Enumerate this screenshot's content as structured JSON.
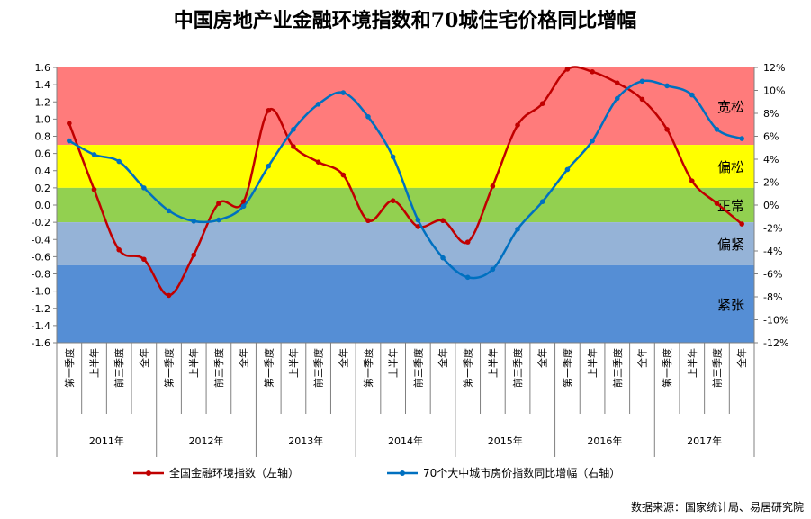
{
  "chart_data": {
    "type": "line",
    "title": "中国房地产业金融环境指数和70城住宅价格同比增幅",
    "source": "数据来源：国家统计局、易居研究院",
    "years": [
      "2011年",
      "2012年",
      "2013年",
      "2014年",
      "2015年",
      "2016年",
      "2017年"
    ],
    "quarters": [
      "第一季度",
      "上半年",
      "前三季度",
      "全年"
    ],
    "left_axis": {
      "min": -1.6,
      "max": 1.6,
      "step": 0.2,
      "ticks": [
        "1.6",
        "1.4",
        "1.2",
        "1.0",
        "0.8",
        "0.6",
        "0.4",
        "0.2",
        "0.0",
        "-0.2",
        "-0.4",
        "-0.6",
        "-0.8",
        "-1.0",
        "-1.2",
        "-1.4",
        "-1.6"
      ]
    },
    "right_axis": {
      "min": -12,
      "max": 12,
      "step": 2,
      "ticks": [
        "12%",
        "10%",
        "8%",
        "6%",
        "4%",
        "2%",
        "0%",
        "-2%",
        "-4%",
        "-6%",
        "-8%",
        "-10%",
        "-12%"
      ]
    },
    "zones": [
      {
        "label": "宽松",
        "from": 0.7,
        "to": 1.6,
        "color": "#ff7b7b"
      },
      {
        "label": "偏松",
        "from": 0.2,
        "to": 0.7,
        "color": "#ffff00"
      },
      {
        "label": "正常",
        "from": -0.2,
        "to": 0.2,
        "color": "#92d050"
      },
      {
        "label": "偏紧",
        "from": -0.7,
        "to": -0.2,
        "color": "#95b3d7"
      },
      {
        "label": "紧张",
        "from": -1.6,
        "to": -0.7,
        "color": "#558ed5"
      }
    ],
    "series": [
      {
        "name": "全国金融环境指数（左轴）",
        "axis": "left",
        "color": "#c00000",
        "values": [
          0.95,
          0.18,
          -0.52,
          -0.63,
          -1.05,
          -0.58,
          0.02,
          0.04,
          1.1,
          0.68,
          0.5,
          0.35,
          -0.18,
          0.05,
          -0.25,
          -0.18,
          -0.43,
          0.22,
          0.93,
          1.18,
          1.58,
          1.55,
          1.42,
          1.23,
          0.88,
          0.28,
          0.02,
          -0.22
        ]
      },
      {
        "name": "70个大中城市房价指数同比增幅（右轴）",
        "axis": "right",
        "color": "#0070c0",
        "values": [
          5.6,
          4.4,
          3.8,
          1.5,
          -0.5,
          -1.4,
          -1.3,
          -0.1,
          3.4,
          6.6,
          8.8,
          9.8,
          7.7,
          4.2,
          -1.3,
          -4.6,
          -6.3,
          -5.6,
          -2.1,
          0.3,
          3.1,
          5.6,
          9.3,
          10.8,
          10.4,
          9.6,
          6.6,
          5.8
        ]
      }
    ]
  }
}
